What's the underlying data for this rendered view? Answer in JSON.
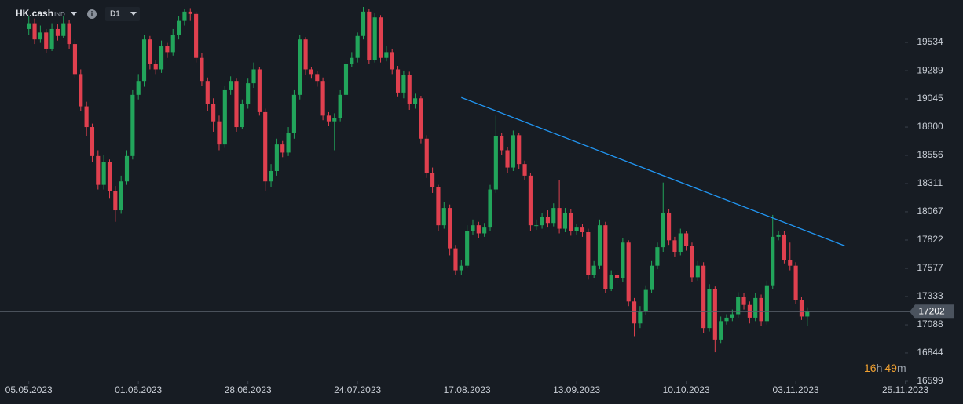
{
  "header": {
    "symbol": "HK.cash",
    "symbol_type": "IND",
    "timeframe": "D1",
    "countdown": [
      "16",
      "h",
      "49",
      "m"
    ]
  },
  "chart_data": {
    "type": "candlestick",
    "up_color": "#22a55b",
    "down_color": "#e0404f",
    "grid": false,
    "xlim": [
      -5,
      162
    ],
    "ylim": [
      16504,
      19901
    ],
    "xticks": [
      {
        "value": 0,
        "label": "05.05.2023"
      },
      {
        "value": 19,
        "label": "01.06.2023"
      },
      {
        "value": 38,
        "label": "28.06.2023"
      },
      {
        "value": 57,
        "label": "24.07.2023"
      },
      {
        "value": 76,
        "label": "17.08.2023"
      },
      {
        "value": 95,
        "label": "13.09.2023"
      },
      {
        "value": 114,
        "label": "10.10.2023"
      },
      {
        "value": 133,
        "label": "03.11.2023"
      },
      {
        "value": 152,
        "label": "25.11.2023"
      }
    ],
    "yticks": [
      19534,
      19289,
      19045,
      18800,
      18556,
      18311,
      18067,
      17822,
      17577,
      17333,
      17088,
      16844,
      16599
    ],
    "current_price": 17202,
    "trendline": {
      "x": [
        75,
        141.5
      ],
      "y": [
        19057,
        17772
      ],
      "color": "#2196f3"
    },
    "candles": [
      [
        19650,
        19760,
        19600,
        19700
      ],
      [
        19700,
        19740,
        19520,
        19560
      ],
      [
        19560,
        19680,
        19530,
        19620
      ],
      [
        19620,
        19650,
        19440,
        19480
      ],
      [
        19480,
        19700,
        19460,
        19650
      ],
      [
        19650,
        19690,
        19550,
        19590
      ],
      [
        19590,
        19760,
        19570,
        19700
      ],
      [
        19700,
        19730,
        19480,
        19520
      ],
      [
        19520,
        19560,
        19230,
        19260
      ],
      [
        19260,
        19300,
        18940,
        18980
      ],
      [
        18980,
        19020,
        18720,
        18800
      ],
      [
        18800,
        18830,
        18500,
        18550
      ],
      [
        18550,
        18600,
        18260,
        18300
      ],
      [
        18300,
        18560,
        18260,
        18500
      ],
      [
        18500,
        18520,
        18180,
        18250
      ],
      [
        18250,
        18290,
        17980,
        18080
      ],
      [
        18080,
        18380,
        18050,
        18330
      ],
      [
        18330,
        18600,
        18300,
        18550
      ],
      [
        18550,
        19120,
        18520,
        19080
      ],
      [
        19080,
        19260,
        19040,
        19200
      ],
      [
        19200,
        19600,
        19150,
        19560
      ],
      [
        19560,
        19590,
        19300,
        19350
      ],
      [
        19350,
        19380,
        19260,
        19300
      ],
      [
        19300,
        19550,
        19270,
        19500
      ],
      [
        19500,
        19530,
        19400,
        19450
      ],
      [
        19450,
        19650,
        19420,
        19600
      ],
      [
        19600,
        19760,
        19560,
        19720
      ],
      [
        19720,
        19820,
        19680,
        19800
      ],
      [
        19800,
        19830,
        19720,
        19780
      ],
      [
        19780,
        19800,
        19360,
        19400
      ],
      [
        19400,
        19440,
        19160,
        19200
      ],
      [
        19200,
        19230,
        18940,
        19000
      ],
      [
        19000,
        19050,
        18760,
        18850
      ],
      [
        18850,
        18900,
        18600,
        18650
      ],
      [
        18650,
        19160,
        18620,
        19120
      ],
      [
        19120,
        19240,
        19080,
        19200
      ],
      [
        19200,
        19220,
        18760,
        18800
      ],
      [
        18800,
        19040,
        18780,
        19000
      ],
      [
        19000,
        19220,
        18960,
        19180
      ],
      [
        19180,
        19360,
        19140,
        19300
      ],
      [
        19300,
        19320,
        18900,
        18930
      ],
      [
        18930,
        18960,
        18250,
        18330
      ],
      [
        18330,
        18480,
        18280,
        18420
      ],
      [
        18420,
        18700,
        18380,
        18650
      ],
      [
        18650,
        18680,
        18540,
        18580
      ],
      [
        18580,
        18800,
        18550,
        18750
      ],
      [
        18750,
        19120,
        18700,
        19080
      ],
      [
        19080,
        19600,
        19040,
        19560
      ],
      [
        19560,
        19580,
        19250,
        19300
      ],
      [
        19300,
        19320,
        19220,
        19260
      ],
      [
        19260,
        19290,
        19150,
        19200
      ],
      [
        19200,
        19230,
        18860,
        18900
      ],
      [
        18900,
        18930,
        18810,
        18850
      ],
      [
        18850,
        18920,
        18600,
        18880
      ],
      [
        18880,
        19120,
        18850,
        19080
      ],
      [
        19080,
        19390,
        19050,
        19350
      ],
      [
        19350,
        19450,
        19320,
        19400
      ],
      [
        19400,
        19620,
        19360,
        19590
      ],
      [
        19590,
        19840,
        19560,
        19800
      ],
      [
        19800,
        19820,
        19350,
        19380
      ],
      [
        19380,
        19790,
        19360,
        19750
      ],
      [
        19750,
        19770,
        19360,
        19400
      ],
      [
        19400,
        19500,
        19370,
        19450
      ],
      [
        19450,
        19480,
        19260,
        19300
      ],
      [
        19300,
        19330,
        19060,
        19100
      ],
      [
        19100,
        19290,
        19050,
        19250
      ],
      [
        19250,
        19280,
        18950,
        19000
      ],
      [
        19000,
        19090,
        18960,
        19050
      ],
      [
        19050,
        19070,
        18660,
        18700
      ],
      [
        18700,
        18730,
        18360,
        18400
      ],
      [
        18400,
        18450,
        18230,
        18280
      ],
      [
        18280,
        18300,
        17900,
        17950
      ],
      [
        17950,
        18150,
        17920,
        18100
      ],
      [
        18100,
        18130,
        17690,
        17750
      ],
      [
        17750,
        17780,
        17520,
        17560
      ],
      [
        17560,
        17650,
        17520,
        17600
      ],
      [
        17600,
        17950,
        17580,
        17900
      ],
      [
        17900,
        18000,
        17870,
        17950
      ],
      [
        17950,
        17980,
        17840,
        17880
      ],
      [
        17880,
        17970,
        17850,
        17930
      ],
      [
        17930,
        18300,
        17900,
        18260
      ],
      [
        18260,
        18900,
        18230,
        18720
      ],
      [
        18720,
        18750,
        18560,
        18600
      ],
      [
        18600,
        18630,
        18400,
        18450
      ],
      [
        18450,
        18770,
        18420,
        18730
      ],
      [
        18730,
        18750,
        18440,
        18480
      ],
      [
        18480,
        18510,
        18340,
        18380
      ],
      [
        18380,
        18400,
        17900,
        17950
      ],
      [
        17950,
        18000,
        17910,
        17950
      ],
      [
        17950,
        18060,
        17920,
        18020
      ],
      [
        18020,
        18080,
        17930,
        17970
      ],
      [
        17970,
        18140,
        17940,
        18100
      ],
      [
        18100,
        18340,
        17880,
        17920
      ],
      [
        17920,
        18100,
        17890,
        18060
      ],
      [
        18060,
        18090,
        17860,
        17900
      ],
      [
        17900,
        17960,
        17870,
        17930
      ],
      [
        17930,
        17960,
        17850,
        17890
      ],
      [
        17890,
        17920,
        17480,
        17520
      ],
      [
        17520,
        17640,
        17490,
        17600
      ],
      [
        17600,
        18000,
        17570,
        17950
      ],
      [
        17950,
        17980,
        17360,
        17400
      ],
      [
        17400,
        17560,
        17380,
        17520
      ],
      [
        17520,
        17550,
        17440,
        17490
      ],
      [
        17490,
        17840,
        17460,
        17800
      ],
      [
        17800,
        17820,
        17250,
        17290
      ],
      [
        17290,
        17320,
        16990,
        17100
      ],
      [
        17100,
        17250,
        17060,
        17200
      ],
      [
        17200,
        17430,
        17170,
        17390
      ],
      [
        17390,
        17640,
        17360,
        17600
      ],
      [
        17600,
        17800,
        17570,
        17760
      ],
      [
        17760,
        18320,
        17720,
        18060
      ],
      [
        18060,
        18090,
        17780,
        17820
      ],
      [
        17820,
        17850,
        17680,
        17720
      ],
      [
        17720,
        17920,
        17690,
        17880
      ],
      [
        17880,
        17900,
        17730,
        17770
      ],
      [
        17770,
        17800,
        17460,
        17500
      ],
      [
        17500,
        17640,
        17470,
        17600
      ],
      [
        17600,
        17630,
        17020,
        17060
      ],
      [
        17060,
        17440,
        17030,
        17400
      ],
      [
        17400,
        17420,
        16850,
        16960
      ],
      [
        16960,
        17160,
        16930,
        17120
      ],
      [
        17120,
        17180,
        17090,
        17150
      ],
      [
        17150,
        17220,
        17120,
        17180
      ],
      [
        17180,
        17370,
        17150,
        17330
      ],
      [
        17330,
        17360,
        17220,
        17260
      ],
      [
        17260,
        17290,
        17100,
        17150
      ],
      [
        17150,
        17360,
        17120,
        17320
      ],
      [
        17320,
        17350,
        17080,
        17120
      ],
      [
        17120,
        17470,
        17090,
        17430
      ],
      [
        17430,
        18040,
        17400,
        17850
      ],
      [
        17850,
        17900,
        17820,
        17870
      ],
      [
        17870,
        17900,
        17620,
        17650
      ],
      [
        17650,
        17800,
        17560,
        17600
      ],
      [
        17600,
        17630,
        17270,
        17300
      ],
      [
        17300,
        17330,
        17130,
        17160
      ],
      [
        17160,
        17240,
        17080,
        17202
      ]
    ]
  }
}
